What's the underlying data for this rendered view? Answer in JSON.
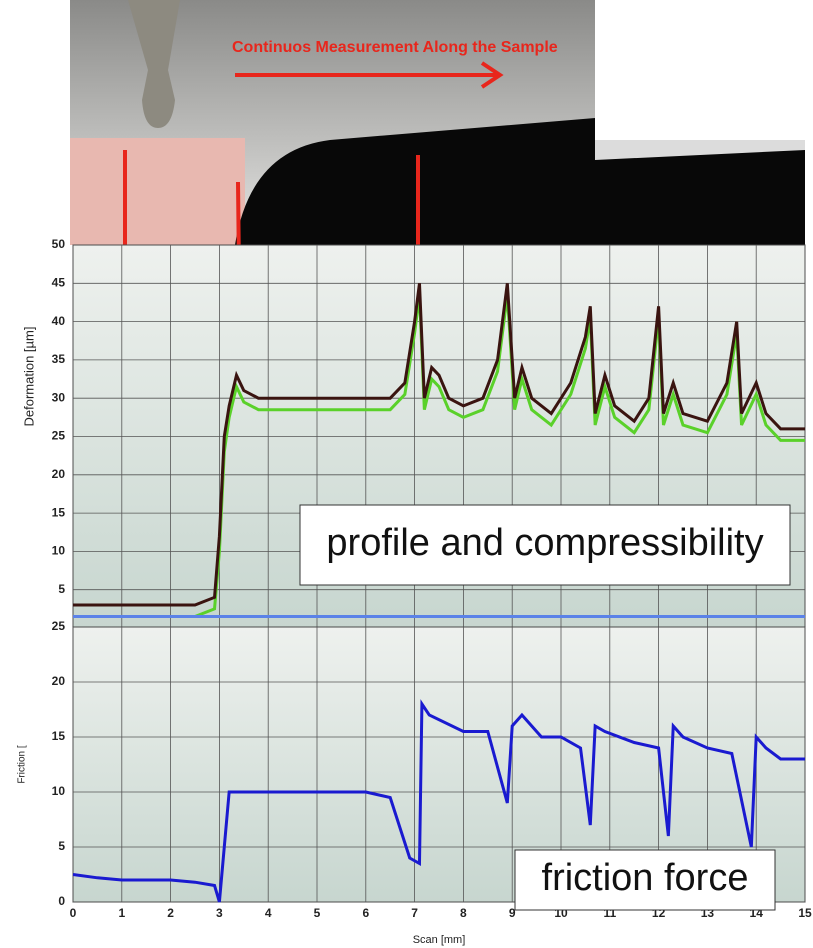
{
  "chart_data": [
    {
      "type": "line",
      "annotation": "Continuos Measurement Along the Sample",
      "label": "profile and compressibility",
      "ylabel": "Deformation [µm]",
      "xlim": [
        0,
        15
      ],
      "xticks": [
        0,
        1,
        2,
        3,
        4,
        5,
        6,
        7,
        8,
        9,
        10,
        11,
        12,
        13,
        14,
        15
      ],
      "ylim": [
        0,
        50
      ],
      "yticks": [
        5,
        10,
        15,
        20,
        25,
        30,
        35,
        40,
        45,
        50
      ],
      "grid": true,
      "x": [
        0,
        0.5,
        1,
        1.5,
        2,
        2.5,
        2.9,
        3.0,
        3.1,
        3.2,
        3.35,
        3.5,
        3.8,
        4.5,
        5,
        5.5,
        6,
        6.5,
        6.8,
        7.0,
        7.1,
        7.2,
        7.35,
        7.5,
        7.7,
        8.0,
        8.4,
        8.7,
        8.9,
        8.95,
        9.05,
        9.2,
        9.4,
        9.8,
        10.2,
        10.5,
        10.6,
        10.7,
        10.9,
        11.1,
        11.5,
        11.8,
        12.0,
        12.1,
        12.3,
        12.5,
        13.0,
        13.4,
        13.6,
        13.7,
        14.0,
        14.2,
        14.5,
        15
      ],
      "series": [
        {
          "color": "#5ad12a",
          "values": [
            1.5,
            1.5,
            1.5,
            1.5,
            1.5,
            1.5,
            2.5,
            10,
            23,
            27.5,
            31.5,
            29.5,
            28.5,
            28.5,
            28.5,
            28.5,
            28.5,
            28.5,
            30.5,
            38.5,
            43.5,
            28.5,
            32.5,
            31.5,
            28.5,
            27.5,
            28.5,
            33.5,
            43.5,
            38.5,
            28.5,
            32.5,
            28.5,
            26.5,
            30.5,
            36.5,
            40.5,
            26.5,
            31.5,
            27.5,
            25.5,
            28.5,
            40.5,
            26.5,
            30.5,
            26.5,
            25.5,
            30.5,
            38.5,
            26.5,
            30.5,
            26.5,
            24.5,
            24.5
          ]
        },
        {
          "color": "#3a1410",
          "values": [
            3,
            3,
            3,
            3,
            3,
            3,
            4,
            12,
            25,
            29,
            33,
            31,
            30,
            30,
            30,
            30,
            30,
            30,
            32,
            40,
            45,
            30,
            34,
            33,
            30,
            29,
            30,
            35,
            45,
            40,
            30,
            34,
            30,
            28,
            32,
            38,
            42,
            28,
            33,
            29,
            27,
            30,
            42,
            28,
            32,
            28,
            27,
            32,
            40,
            28,
            32,
            28,
            26,
            26
          ]
        },
        {
          "color": "#5b82e8",
          "values": [
            1.5,
            1.5,
            1.5,
            1.5,
            1.5,
            1.5,
            1.5,
            1.5,
            1.5,
            1.5,
            1.5,
            1.5,
            1.5,
            1.5,
            1.5,
            1.5,
            1.5,
            1.5,
            1.5,
            1.5,
            1.5,
            1.5,
            1.5,
            1.5,
            1.5,
            1.5,
            1.5,
            1.5,
            1.5,
            1.5,
            1.5,
            1.5,
            1.5,
            1.5,
            1.5,
            1.5,
            1.5,
            1.5,
            1.5,
            1.5,
            1.5,
            1.5,
            1.5,
            1.5,
            1.5,
            1.5,
            1.5,
            1.5,
            1.5,
            1.5,
            1.5,
            1.5,
            1.5,
            1.5
          ]
        }
      ]
    },
    {
      "type": "line",
      "label": "friction force",
      "ylabel": "Friction [",
      "xlabel": "Scan [mm]",
      "xlim": [
        0,
        15
      ],
      "xticks": [
        0,
        1,
        2,
        3,
        4,
        5,
        6,
        7,
        8,
        9,
        10,
        11,
        12,
        13,
        14,
        15
      ],
      "ylim": [
        0,
        25
      ],
      "yticks": [
        0,
        5,
        10,
        15,
        20,
        25
      ],
      "grid": true,
      "x": [
        0,
        0.5,
        1,
        1.5,
        2,
        2.5,
        2.9,
        3.0,
        3.1,
        3.2,
        3.5,
        4,
        5,
        6,
        6.5,
        6.9,
        7.1,
        7.15,
        7.3,
        8,
        8.5,
        8.9,
        9.0,
        9.2,
        9.6,
        10,
        10.4,
        10.6,
        10.7,
        10.9,
        11.5,
        12,
        12.2,
        12.3,
        12.5,
        13,
        13.5,
        13.9,
        14.0,
        14.2,
        14.5,
        15
      ],
      "series": [
        {
          "color": "#1a1ad0",
          "values": [
            2.5,
            2.2,
            2,
            2,
            2,
            1.8,
            1.5,
            0,
            5,
            10,
            10,
            10,
            10,
            10,
            9.5,
            4,
            3.5,
            18,
            17,
            15.5,
            15.5,
            9,
            16,
            17,
            15,
            15,
            14,
            7,
            16,
            15.5,
            14.5,
            14,
            6,
            16,
            15,
            14,
            13.5,
            5,
            15,
            14,
            13,
            13
          ]
        }
      ]
    }
  ]
}
